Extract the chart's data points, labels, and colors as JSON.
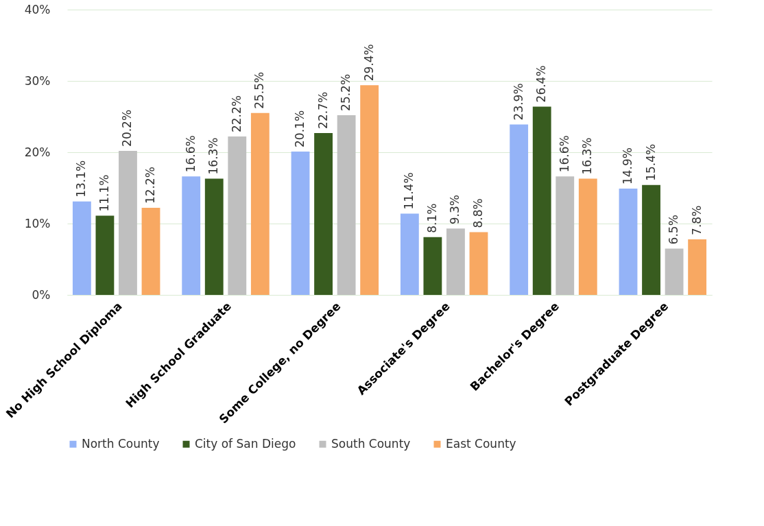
{
  "chart_data": {
    "type": "bar",
    "categories": [
      "No High School Diploma",
      "High School Graduate",
      "Some College, no Degree",
      "Associate's Degree",
      "Bachelor's Degree",
      "Postgraduate Degree"
    ],
    "series": [
      {
        "name": "North County",
        "color": "#94b3f7",
        "values": [
          13.1,
          16.6,
          20.1,
          11.4,
          23.9,
          14.9
        ],
        "value_labels": [
          "13.1%",
          "16.6%",
          "20.1%",
          "11.4%",
          "23.9%",
          "14.9%"
        ]
      },
      {
        "name": "City of San Diego",
        "color": "#385c1f",
        "values": [
          11.1,
          16.3,
          22.7,
          8.1,
          26.4,
          15.4
        ],
        "value_labels": [
          "11.1%",
          "16.3%",
          "22.7%",
          "8.1%",
          "26.4%",
          "15.4%"
        ]
      },
      {
        "name": "South County",
        "color": "#bfbfbf",
        "values": [
          20.2,
          22.2,
          25.2,
          9.3,
          16.6,
          6.5
        ],
        "value_labels": [
          "20.2%",
          "22.2%",
          "25.2%",
          "9.3%",
          "16.6%",
          "6.5%"
        ]
      },
      {
        "name": "East County",
        "color": "#f8a862",
        "values": [
          12.2,
          25.5,
          29.4,
          8.8,
          16.3,
          7.8
        ],
        "value_labels": [
          "12.2%",
          "25.5%",
          "29.4%",
          "8.8%",
          "16.3%",
          "7.8%"
        ]
      }
    ],
    "ylim": [
      0,
      40
    ],
    "yticks": [
      {
        "value": 0,
        "label": "0%"
      },
      {
        "value": 10,
        "label": "10%"
      },
      {
        "value": 20,
        "label": "20%"
      },
      {
        "value": 30,
        "label": "30%"
      },
      {
        "value": 40,
        "label": "40%"
      }
    ],
    "grid": "y",
    "legend": "bottom"
  }
}
